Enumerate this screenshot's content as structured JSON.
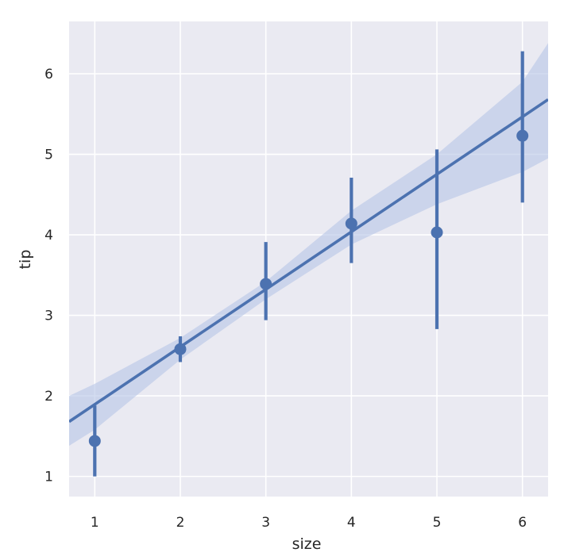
{
  "chart_data": {
    "type": "scatter",
    "xlabel": "size",
    "ylabel": "tip",
    "xlim": [
      0.7,
      6.3
    ],
    "ylim": [
      0.75,
      6.65
    ],
    "x_ticks": [
      1,
      2,
      3,
      4,
      5,
      6
    ],
    "y_ticks": [
      1,
      2,
      3,
      4,
      5,
      6
    ],
    "grid": true,
    "style": "seaborn darkgrid",
    "colors": {
      "series": "#4c72b0",
      "band": "#b6c5e6",
      "plot_bg": "#eaeaf2",
      "grid": "#ffffff"
    },
    "points": [
      {
        "x": 1,
        "y": 1.44,
        "ci_low": 1.0,
        "ci_high": 1.88
      },
      {
        "x": 2,
        "y": 2.58,
        "ci_low": 2.42,
        "ci_high": 2.74
      },
      {
        "x": 3,
        "y": 3.39,
        "ci_low": 2.94,
        "ci_high": 3.91
      },
      {
        "x": 4,
        "y": 4.14,
        "ci_low": 3.65,
        "ci_high": 4.71
      },
      {
        "x": 5,
        "y": 4.03,
        "ci_low": 2.83,
        "ci_high": 5.06
      },
      {
        "x": 6,
        "y": 5.23,
        "ci_low": 4.4,
        "ci_high": 6.28
      }
    ],
    "regression": {
      "x": [
        0.7,
        6.3
      ],
      "y": [
        1.68,
        5.68
      ]
    },
    "confidence_band": {
      "x": [
        0.7,
        1,
        2,
        3,
        4,
        5,
        6,
        6.3
      ],
      "low": [
        1.38,
        1.58,
        2.45,
        3.2,
        3.88,
        4.38,
        4.78,
        4.95
      ],
      "high": [
        2.0,
        2.15,
        2.72,
        3.42,
        4.3,
        5.0,
        5.9,
        6.38
      ]
    }
  }
}
